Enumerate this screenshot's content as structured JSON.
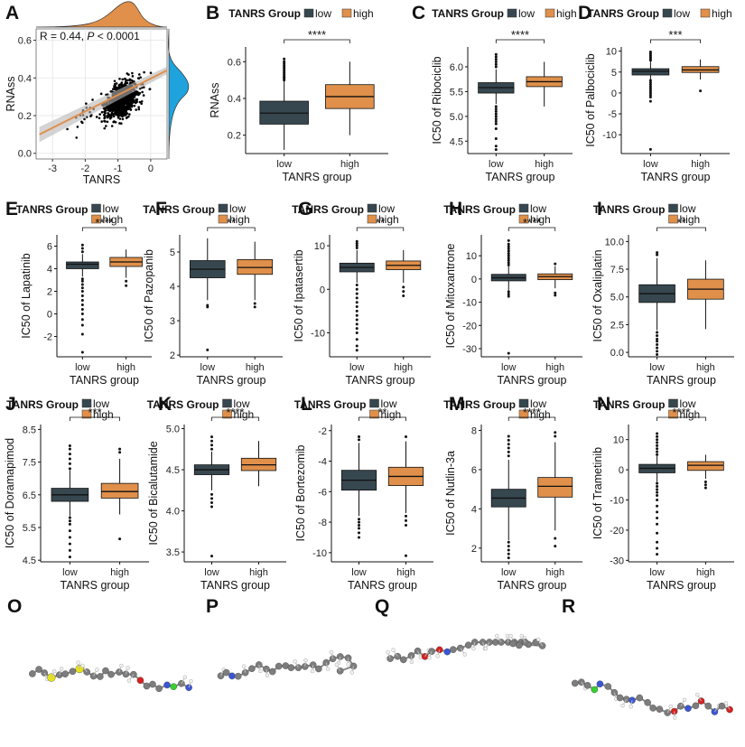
{
  "colors": {
    "low": "#37474f",
    "high": "#e0904a",
    "density_top": "#e0904a",
    "density_right": "#1fa3dc",
    "fit_line": "#e0904a",
    "fit_band": "#b8b8b8"
  },
  "legend": {
    "title": "TANRS Group",
    "items": [
      "low",
      "high"
    ]
  },
  "molecules": [
    {
      "panel": "O"
    },
    {
      "panel": "P"
    },
    {
      "panel": "Q"
    },
    {
      "panel": "R"
    }
  ],
  "chart_data": [
    {
      "panel": "A",
      "type": "scatter",
      "xlabel": "TANRS",
      "ylabel": "RNAss",
      "annotation": {
        "r": "R = 0.44, ",
        "p": "P",
        "p_rest": " < 0.0001"
      },
      "xlim": [
        -3.5,
        0.5
      ],
      "ylim": [
        -0.03,
        0.66
      ],
      "xticks": [
        -3,
        -2,
        -1,
        0
      ],
      "yticks": [
        0.0,
        0.2,
        0.4,
        0.6
      ],
      "fit": {
        "x0": -3.4,
        "y0": 0.1,
        "x1": 0.5,
        "y1": 0.44
      }
    },
    {
      "panel": "B",
      "type": "box",
      "ylabel": "RNAss",
      "xlabel": "TANRS group",
      "categories": [
        "low",
        "high"
      ],
      "ylim": [
        0.1,
        0.68
      ],
      "yticks": [
        0.2,
        0.4,
        0.6
      ],
      "sig": "****",
      "boxes": [
        {
          "min": 0.12,
          "q1": 0.26,
          "med": 0.32,
          "q3": 0.385,
          "max": 0.5,
          "outliers": [
            0.5,
            0.51,
            0.515,
            0.52,
            0.53,
            0.54,
            0.55,
            0.56,
            0.57,
            0.58,
            0.59,
            0.6,
            0.615
          ]
        },
        {
          "min": 0.2,
          "q1": 0.345,
          "med": 0.41,
          "q3": 0.475,
          "max": 0.6,
          "outliers": []
        }
      ]
    },
    {
      "panel": "C",
      "type": "box",
      "ylabel": "IC50 of Ribociclib",
      "xlabel": "TANRS group",
      "categories": [
        "low",
        "high"
      ],
      "ylim": [
        4.25,
        6.4
      ],
      "yticks": [
        4.5,
        5.0,
        5.5,
        6.0
      ],
      "sig": "****",
      "boxes": [
        {
          "min": 5.25,
          "q1": 5.47,
          "med": 5.58,
          "q3": 5.68,
          "max": 5.95,
          "outliers": [
            6.0,
            6.05,
            6.1,
            6.15,
            6.2,
            6.25,
            5.2,
            5.15,
            5.1,
            5.05,
            5.0,
            4.95,
            4.9,
            4.85,
            4.75,
            4.55,
            4.4,
            4.33
          ]
        },
        {
          "min": 5.2,
          "q1": 5.6,
          "med": 5.7,
          "q3": 5.8,
          "max": 6.1,
          "outliers": []
        }
      ]
    },
    {
      "panel": "D",
      "type": "box",
      "ylabel": "IC50 of Palbociclib",
      "xlabel": "TANRS group",
      "categories": [
        "low",
        "high"
      ],
      "ylim": [
        -14.5,
        11
      ],
      "yticks": [
        -10,
        -5,
        0,
        5,
        10
      ],
      "sig": "***",
      "boxes": [
        {
          "min": 3.2,
          "q1": 4.3,
          "med": 5.2,
          "q3": 5.8,
          "max": 7.5,
          "outliers": [
            7.8,
            8.2,
            8.6,
            9.0,
            9.4,
            9.8,
            3.0,
            2.5,
            2.0,
            1.5,
            1.0,
            0.5,
            0.0,
            -0.5,
            -1.0,
            -2.0,
            -13.5
          ]
        },
        {
          "min": 3.2,
          "q1": 4.9,
          "med": 5.5,
          "q3": 6.3,
          "max": 8.0,
          "outliers": [
            0.5
          ]
        }
      ]
    },
    {
      "panel": "E",
      "type": "box",
      "ylabel": "IC50 of Lapatinib",
      "xlabel": "TANRS group",
      "categories": [
        "low",
        "high"
      ],
      "ylim": [
        -3.8,
        7
      ],
      "yticks": [
        -2,
        0,
        2,
        4,
        6
      ],
      "sig": "****",
      "boxes": [
        {
          "min": 3.3,
          "q1": 4.0,
          "med": 4.4,
          "q3": 4.6,
          "max": 5.3,
          "outliers": [
            5.5,
            5.8,
            6.1,
            3.1,
            2.9,
            2.6,
            2.3,
            2.0,
            1.6,
            1.2,
            0.8,
            0.4,
            0.0,
            -0.5,
            -1.0,
            -1.8,
            -3.4
          ]
        },
        {
          "min": 3.2,
          "q1": 4.2,
          "med": 4.6,
          "q3": 5.0,
          "max": 5.7,
          "outliers": [
            2.9,
            2.5
          ]
        }
      ]
    },
    {
      "panel": "F",
      "type": "box",
      "ylabel": "IC50 of Pazopanib",
      "xlabel": "TANRS group",
      "categories": [
        "low",
        "high"
      ],
      "ylim": [
        1.95,
        5.5
      ],
      "yticks": [
        2,
        3,
        4,
        5
      ],
      "sig": "**",
      "boxes": [
        {
          "min": 3.6,
          "q1": 4.25,
          "med": 4.5,
          "q3": 4.75,
          "max": 5.4,
          "outliers": [
            3.45,
            3.4,
            2.15
          ]
        },
        {
          "min": 3.6,
          "q1": 4.35,
          "med": 4.55,
          "q3": 4.78,
          "max": 5.3,
          "outliers": [
            3.5,
            3.4
          ]
        }
      ]
    },
    {
      "panel": "G",
      "type": "box",
      "ylabel": "IC50 of Ipatasertib",
      "xlabel": "TANRS group",
      "categories": [
        "low",
        "high"
      ],
      "ylim": [
        -15.5,
        12.5
      ],
      "yticks": [
        -10,
        0,
        10
      ],
      "sig": "**",
      "boxes": [
        {
          "min": 1.5,
          "q1": 4.0,
          "med": 5.0,
          "q3": 6.0,
          "max": 9.0,
          "outliers": [
            9.5,
            10.0,
            10.5,
            11.0,
            1.0,
            0.0,
            -1.0,
            -2.0,
            -3.0,
            -4.0,
            -5.0,
            -6.0,
            -7.0,
            -8.0,
            -9.0,
            -10.0,
            -11.5,
            -13.0,
            -14.0
          ]
        },
        {
          "min": 1.5,
          "q1": 4.5,
          "med": 5.5,
          "q3": 6.5,
          "max": 9.0,
          "outliers": [
            0.5,
            -0.5,
            -1.5
          ]
        }
      ]
    },
    {
      "panel": "H",
      "type": "box",
      "ylabel": "IC50 of Mitoxantrone",
      "xlabel": "TANRS group",
      "categories": [
        "low",
        "high"
      ],
      "ylim": [
        -33.5,
        19
      ],
      "yticks": [
        -30,
        -20,
        -10,
        0,
        10
      ],
      "sig": "****",
      "boxes": [
        {
          "min": -5.0,
          "q1": -0.8,
          "med": 0.5,
          "q3": 2.0,
          "max": 5.5,
          "outliers": [
            6.0,
            7.0,
            8.0,
            9.0,
            10.0,
            11.0,
            12.0,
            13.0,
            14.0,
            15.0,
            16.5,
            -5.5,
            -6.5,
            -7.5,
            -32.0
          ]
        },
        {
          "min": -4.0,
          "q1": -0.3,
          "med": 1.0,
          "q3": 2.2,
          "max": 5.5,
          "outliers": [
            -6.0,
            -7.0,
            6.5
          ]
        }
      ]
    },
    {
      "panel": "I",
      "type": "box",
      "ylabel": "IC50 of Oxaliplatin",
      "xlabel": "TANRS group",
      "categories": [
        "low",
        "high"
      ],
      "ylim": [
        -0.4,
        10.6
      ],
      "yticks": [
        0.0,
        2.5,
        5.0,
        7.5,
        10.0
      ],
      "sig": "**",
      "boxes": [
        {
          "min": 2.0,
          "q1": 4.5,
          "med": 5.3,
          "q3": 6.1,
          "max": 8.5,
          "outliers": [
            8.8,
            9.0,
            1.8,
            1.5,
            1.2,
            1.0,
            0.7,
            0.4,
            0.1,
            -0.2
          ]
        },
        {
          "min": 2.1,
          "q1": 4.8,
          "med": 5.7,
          "q3": 6.6,
          "max": 8.3,
          "outliers": []
        }
      ]
    },
    {
      "panel": "J",
      "type": "box",
      "ylabel": "IC50 of Doramapimod",
      "xlabel": "TANRS group",
      "categories": [
        "low",
        "high"
      ],
      "ylim": [
        4.45,
        8.65
      ],
      "yticks": [
        4.5,
        5.5,
        6.5,
        7.5,
        8.5
      ],
      "sig": "***",
      "boxes": [
        {
          "min": 5.85,
          "q1": 6.3,
          "med": 6.5,
          "q3": 6.7,
          "max": 7.25,
          "outliers": [
            7.3,
            7.45,
            7.6,
            7.75,
            7.9,
            8.0,
            5.8,
            5.7,
            5.6,
            5.4,
            5.2,
            5.0,
            4.8,
            4.6
          ]
        },
        {
          "min": 5.9,
          "q1": 6.4,
          "med": 6.6,
          "q3": 6.85,
          "max": 7.6,
          "outliers": [
            7.8,
            7.9,
            5.15
          ]
        }
      ]
    },
    {
      "panel": "K",
      "type": "box",
      "ylabel": "IC50 of Bicalutamide",
      "xlabel": "TANRS group",
      "categories": [
        "low",
        "high"
      ],
      "ylim": [
        3.38,
        5.05
      ],
      "yticks": [
        3.5,
        4.0,
        4.5,
        5.0
      ],
      "sig": "****",
      "boxes": [
        {
          "min": 4.25,
          "q1": 4.44,
          "med": 4.5,
          "q3": 4.56,
          "max": 4.72,
          "outliers": [
            4.75,
            4.8,
            4.85,
            4.9,
            4.2,
            4.15,
            4.1,
            4.05,
            3.45
          ]
        },
        {
          "min": 4.3,
          "q1": 4.49,
          "med": 4.56,
          "q3": 4.64,
          "max": 4.85,
          "outliers": []
        }
      ]
    },
    {
      "panel": "L",
      "type": "box",
      "ylabel": "IC50 of Bortezomib",
      "xlabel": "TANRS group",
      "categories": [
        "low",
        "high"
      ],
      "ylim": [
        -10.6,
        -1.6
      ],
      "yticks": [
        -10,
        -8,
        -6,
        -4,
        -2
      ],
      "sig": "**",
      "boxes": [
        {
          "min": -7.6,
          "q1": -5.9,
          "med": -5.25,
          "q3": -4.6,
          "max": -2.8,
          "outliers": [
            -2.6,
            -2.4,
            -7.8,
            -8.0,
            -8.2,
            -8.4,
            -8.7,
            -9.0
          ]
        },
        {
          "min": -7.4,
          "q1": -5.6,
          "med": -5.0,
          "q3": -4.4,
          "max": -2.7,
          "outliers": [
            -2.4,
            -7.6,
            -7.9,
            -8.2,
            -10.2
          ]
        }
      ]
    },
    {
      "panel": "M",
      "type": "box",
      "ylabel": "IC50 of Nutlin-3a",
      "xlabel": "TANRS group",
      "categories": [
        "low",
        "high"
      ],
      "ylim": [
        1.3,
        8.3
      ],
      "yticks": [
        2,
        4,
        6,
        8
      ],
      "sig": "****",
      "boxes": [
        {
          "min": 2.4,
          "q1": 4.1,
          "med": 4.55,
          "q3": 5.0,
          "max": 6.5,
          "outliers": [
            6.7,
            6.9,
            7.1,
            7.3,
            7.5,
            7.7,
            2.3,
            2.1,
            1.9,
            1.7,
            1.5
          ]
        },
        {
          "min": 2.9,
          "q1": 4.6,
          "med": 5.15,
          "q3": 5.6,
          "max": 7.4,
          "outliers": [
            7.7,
            7.9,
            2.5,
            2.1
          ]
        }
      ]
    },
    {
      "panel": "N",
      "type": "box",
      "ylabel": "IC50 of Trametinib",
      "xlabel": "TANRS group",
      "categories": [
        "low",
        "high"
      ],
      "ylim": [
        -30.5,
        15
      ],
      "yticks": [
        -30,
        -20,
        -10,
        0,
        10
      ],
      "sig": "****",
      "boxes": [
        {
          "min": -4.0,
          "q1": -1.0,
          "med": 0.5,
          "q3": 1.8,
          "max": 4.5,
          "outliers": [
            5.0,
            6.0,
            7.0,
            8.0,
            9.0,
            10.0,
            11.0,
            12.0,
            -4.5,
            -5.5,
            -6.5,
            -7.5,
            -8.5,
            -10.0,
            -12.0,
            -14.0,
            -16.0,
            -18.0,
            -21.0,
            -24.0,
            -26.0,
            -28.0
          ]
        },
        {
          "min": -3.0,
          "q1": -0.2,
          "med": 1.5,
          "q3": 2.7,
          "max": 5.0,
          "outliers": [
            -4.0,
            -5.0,
            -6.0
          ]
        }
      ]
    }
  ]
}
